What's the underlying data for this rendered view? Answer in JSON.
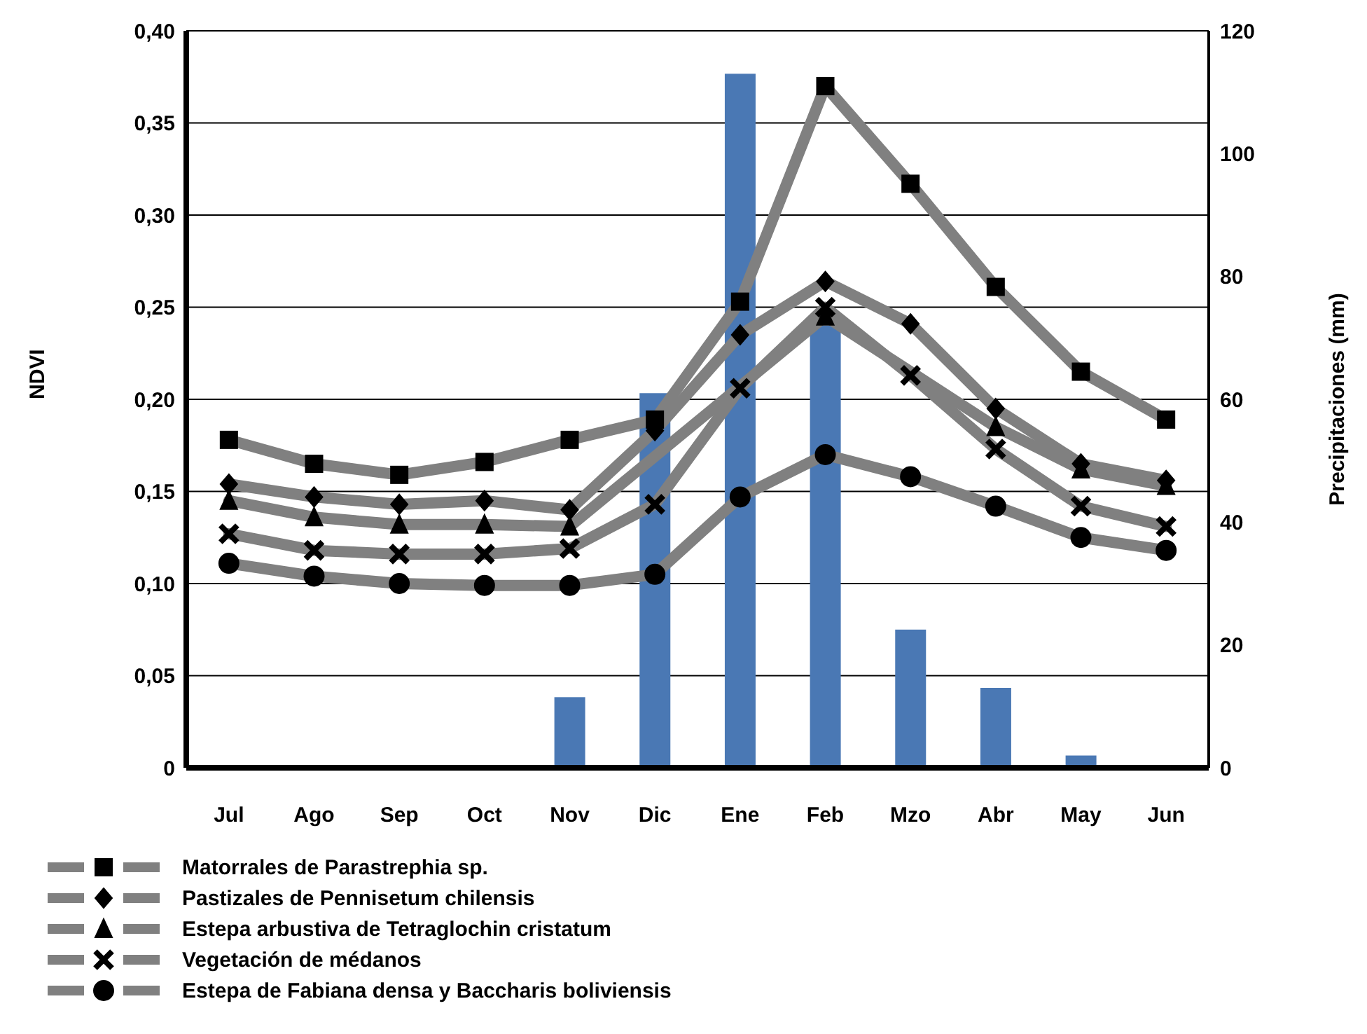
{
  "chart_data": {
    "type": "line",
    "categories": [
      "Jul",
      "Ago",
      "Sep",
      "Oct",
      "Nov",
      "Dic",
      "Ene",
      "Feb",
      "Mzo",
      "Abr",
      "May",
      "Jun"
    ],
    "ylabel": "NDVI",
    "y2label": "Precipitaciones (mm)",
    "ylim": [
      0,
      0.4
    ],
    "yticks": [
      0,
      {
        "value": 0.05,
        "label": "0,05"
      },
      {
        "value": 0.1,
        "label": "0,10"
      },
      {
        "value": 0.15,
        "label": "0,15"
      },
      {
        "value": 0.2,
        "label": "0,20"
      },
      {
        "value": 0.25,
        "label": "0,25"
      },
      {
        "value": 0.3,
        "label": "0,30"
      },
      {
        "value": 0.35,
        "label": "0,35"
      },
      {
        "value": 0.4,
        "label": "0,40"
      }
    ],
    "y2lim": [
      0,
      120
    ],
    "y2ticks": [
      0,
      20,
      40,
      60,
      80,
      100,
      120
    ],
    "grid": "y",
    "legend": "bottom",
    "line_style": "solid",
    "series": [
      {
        "type": "bar",
        "axis": "y2",
        "color": "#4a78b4",
        "values": [
          null,
          null,
          null,
          null,
          11.5,
          61,
          113,
          72,
          22.5,
          13,
          2,
          null
        ]
      },
      {
        "name": "Matorrales de Parastrephia sp.",
        "color": "#808080",
        "marker": "square",
        "values": [
          0.178,
          0.165,
          0.159,
          0.166,
          0.178,
          0.189,
          0.253,
          0.37,
          0.317,
          0.261,
          0.215,
          0.189
        ]
      },
      {
        "name": "Pastizales de Pennisetum chilensis",
        "color": "#808080",
        "marker": "diamond",
        "values": [
          0.154,
          0.147,
          0.143,
          0.145,
          0.14,
          0.183,
          0.235,
          0.264,
          0.241,
          0.195,
          0.165,
          0.156
        ]
      },
      {
        "name": "Estepa arbustiva de Tetraglochin cristatum",
        "color": "#808080",
        "marker": "triangle",
        "values": [
          0.145,
          0.136,
          0.132,
          0.132,
          0.131,
          null,
          null,
          0.245,
          null,
          0.185,
          0.162,
          0.153
        ]
      },
      {
        "name": "Vegetación de médanos",
        "color": "#808080",
        "marker": "cross",
        "values": [
          0.127,
          0.118,
          0.116,
          0.116,
          0.119,
          0.143,
          0.206,
          0.25,
          0.213,
          0.173,
          0.142,
          0.131
        ]
      },
      {
        "name": "Estepa de Fabiana densa y Baccharis boliviensis",
        "color": "#808080",
        "marker": "circle",
        "values": [
          0.111,
          0.104,
          0.1,
          0.099,
          0.099,
          0.105,
          0.147,
          0.17,
          0.158,
          0.142,
          0.125,
          0.118
        ]
      }
    ]
  }
}
